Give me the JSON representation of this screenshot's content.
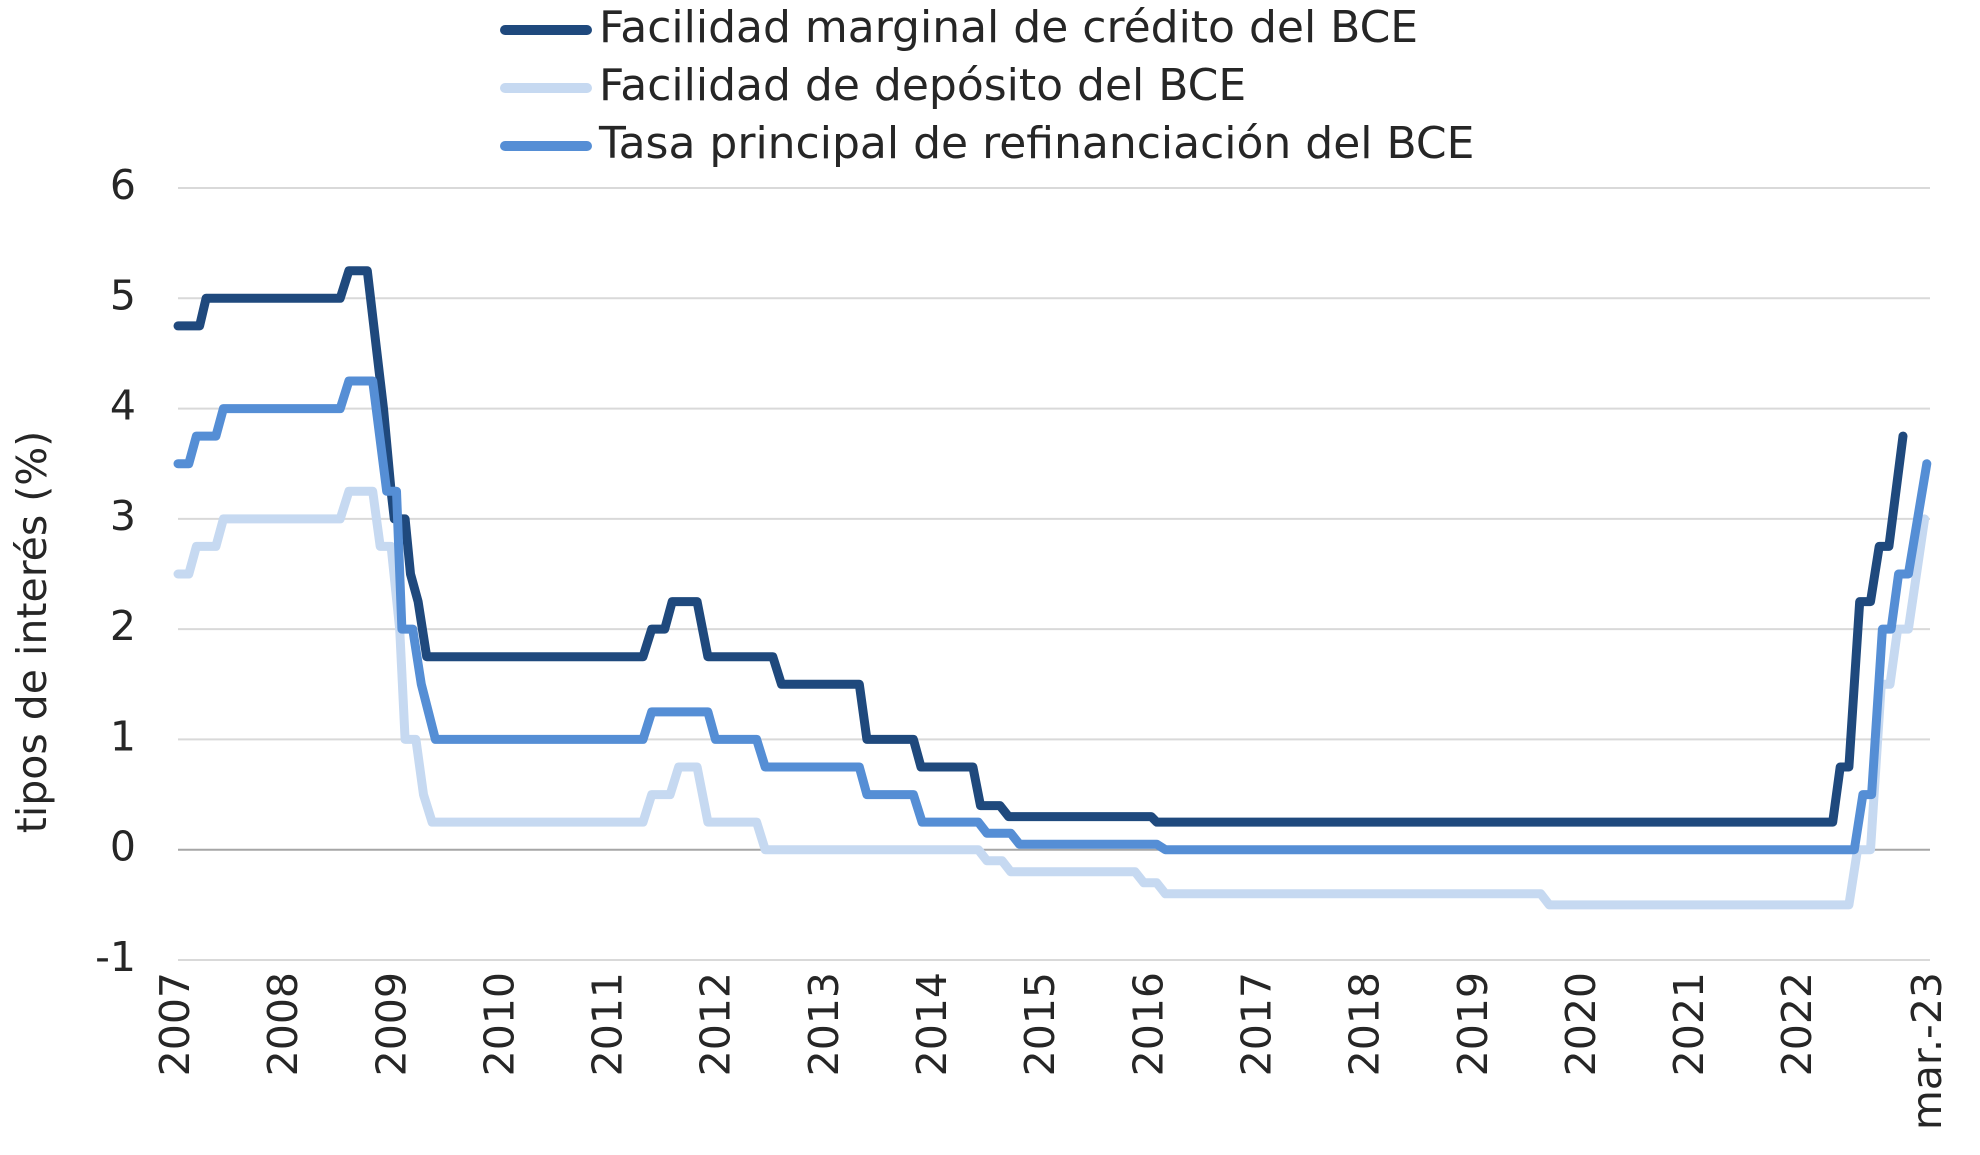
{
  "chart_data": {
    "type": "line",
    "title": "",
    "xlabel": "",
    "ylabel": "tipos de interés (%)",
    "ylim": [
      -1,
      6
    ],
    "yticks": [
      -1,
      0,
      1,
      2,
      3,
      4,
      5,
      6
    ],
    "xlim": [
      2007.0,
      2023.2
    ],
    "x_tick_labels": [
      "2007",
      "2008",
      "2009",
      "2010",
      "2011",
      "2012",
      "2013",
      "2014",
      "2015",
      "2016",
      "2017",
      "2018",
      "2019",
      "2020",
      "2021",
      "2022",
      "mar.-23"
    ],
    "x_tick_values": [
      2007,
      2008,
      2009,
      2010,
      2011,
      2012,
      2013,
      2014,
      2015,
      2016,
      2017,
      2018,
      2019,
      2020,
      2021,
      2022,
      2023.2
    ],
    "grid": true,
    "legend_position": "top",
    "series": [
      {
        "name": "Facilidad marginal de crédito del BCE",
        "color": "#1f497d",
        "points": [
          [
            2007.0,
            4.75
          ],
          [
            2007.2,
            4.75
          ],
          [
            2007.26,
            5.0
          ],
          [
            2008.5,
            5.0
          ],
          [
            2008.58,
            5.25
          ],
          [
            2008.75,
            5.25
          ],
          [
            2008.9,
            4.0
          ],
          [
            2008.97,
            3.25
          ],
          [
            2009.0,
            3.0
          ],
          [
            2009.1,
            3.0
          ],
          [
            2009.15,
            2.5
          ],
          [
            2009.22,
            2.25
          ],
          [
            2009.3,
            1.75
          ],
          [
            2011.3,
            1.75
          ],
          [
            2011.38,
            2.0
          ],
          [
            2011.5,
            2.0
          ],
          [
            2011.57,
            2.25
          ],
          [
            2011.8,
            2.25
          ],
          [
            2011.9,
            1.75
          ],
          [
            2012.5,
            1.75
          ],
          [
            2012.58,
            1.5
          ],
          [
            2013.3,
            1.5
          ],
          [
            2013.37,
            1.0
          ],
          [
            2013.8,
            1.0
          ],
          [
            2013.87,
            0.75
          ],
          [
            2014.35,
            0.75
          ],
          [
            2014.42,
            0.4
          ],
          [
            2014.6,
            0.4
          ],
          [
            2014.68,
            0.3
          ],
          [
            2016.0,
            0.3
          ],
          [
            2016.05,
            0.25
          ],
          [
            2022.3,
            0.25
          ],
          [
            2022.37,
            0.75
          ],
          [
            2022.45,
            0.75
          ],
          [
            2022.55,
            2.25
          ],
          [
            2022.65,
            2.25
          ],
          [
            2022.73,
            2.75
          ],
          [
            2022.82,
            2.75
          ],
          [
            2022.95,
            3.75
          ]
        ]
      },
      {
        "name": "Facilidad de depósito del BCE",
        "color": "#c6d9f1",
        "points": [
          [
            2007.0,
            2.5
          ],
          [
            2007.1,
            2.5
          ],
          [
            2007.17,
            2.75
          ],
          [
            2007.35,
            2.75
          ],
          [
            2007.42,
            3.0
          ],
          [
            2008.5,
            3.0
          ],
          [
            2008.58,
            3.25
          ],
          [
            2008.8,
            3.25
          ],
          [
            2008.87,
            2.75
          ],
          [
            2008.97,
            2.75
          ],
          [
            2009.05,
            2.0
          ],
          [
            2009.1,
            1.0
          ],
          [
            2009.2,
            1.0
          ],
          [
            2009.27,
            0.5
          ],
          [
            2009.35,
            0.25
          ],
          [
            2011.3,
            0.25
          ],
          [
            2011.38,
            0.5
          ],
          [
            2011.55,
            0.5
          ],
          [
            2011.63,
            0.75
          ],
          [
            2011.8,
            0.75
          ],
          [
            2011.9,
            0.25
          ],
          [
            2012.35,
            0.25
          ],
          [
            2012.43,
            0.0
          ],
          [
            2014.4,
            0.0
          ],
          [
            2014.48,
            -0.1
          ],
          [
            2014.62,
            -0.1
          ],
          [
            2014.7,
            -0.2
          ],
          [
            2015.85,
            -0.2
          ],
          [
            2015.93,
            -0.3
          ],
          [
            2016.05,
            -0.3
          ],
          [
            2016.13,
            -0.4
          ],
          [
            2019.6,
            -0.4
          ],
          [
            2019.68,
            -0.5
          ],
          [
            2022.45,
            -0.5
          ],
          [
            2022.53,
            0.0
          ],
          [
            2022.65,
            0.0
          ],
          [
            2022.75,
            1.5
          ],
          [
            2022.83,
            1.5
          ],
          [
            2022.9,
            2.0
          ],
          [
            2023.0,
            2.0
          ],
          [
            2023.15,
            3.0
          ]
        ]
      },
      {
        "name": "Tasa principal de refinanciación del BCE",
        "color": "#558ed5",
        "points": [
          [
            2007.0,
            3.5
          ],
          [
            2007.1,
            3.5
          ],
          [
            2007.17,
            3.75
          ],
          [
            2007.35,
            3.75
          ],
          [
            2007.42,
            4.0
          ],
          [
            2008.5,
            4.0
          ],
          [
            2008.58,
            4.25
          ],
          [
            2008.8,
            4.25
          ],
          [
            2008.93,
            3.25
          ],
          [
            2009.02,
            3.25
          ],
          [
            2009.07,
            2.0
          ],
          [
            2009.17,
            2.0
          ],
          [
            2009.25,
            1.5
          ],
          [
            2009.38,
            1.0
          ],
          [
            2011.3,
            1.0
          ],
          [
            2011.38,
            1.25
          ],
          [
            2011.9,
            1.25
          ],
          [
            2011.97,
            1.0
          ],
          [
            2012.35,
            1.0
          ],
          [
            2012.43,
            0.75
          ],
          [
            2013.3,
            0.75
          ],
          [
            2013.37,
            0.5
          ],
          [
            2013.8,
            0.5
          ],
          [
            2013.88,
            0.25
          ],
          [
            2014.4,
            0.25
          ],
          [
            2014.48,
            0.15
          ],
          [
            2014.7,
            0.15
          ],
          [
            2014.78,
            0.05
          ],
          [
            2016.05,
            0.05
          ],
          [
            2016.13,
            0.0
          ],
          [
            2022.5,
            0.0
          ],
          [
            2022.58,
            0.5
          ],
          [
            2022.66,
            0.5
          ],
          [
            2022.76,
            2.0
          ],
          [
            2022.84,
            2.0
          ],
          [
            2022.91,
            2.5
          ],
          [
            2023.0,
            2.5
          ],
          [
            2023.17,
            3.5
          ]
        ]
      }
    ]
  }
}
